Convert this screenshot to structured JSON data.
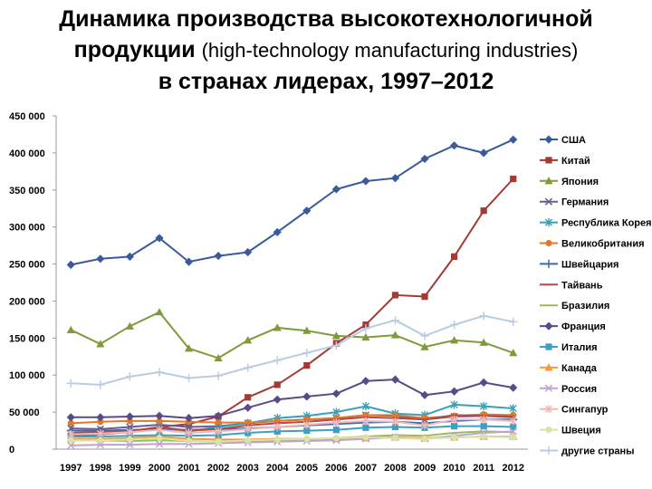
{
  "title": {
    "line1": "Динамика производства высокотехнологичной",
    "line2_main": "продукции",
    "line2_paren": "(high-technology manufacturing  industries)",
    "line3": "в странах лидерах, 1997–2012"
  },
  "chart_data": {
    "type": "line",
    "title": "Динамика производства высокотехнологичной продукции (high-technology manufacturing industries) в странах лидерах, 1997–2012",
    "xlabel": "",
    "ylabel": "",
    "categories": [
      "1997",
      "1998",
      "1999",
      "2000",
      "2001",
      "2002",
      "2003",
      "2004",
      "2005",
      "2006",
      "2007",
      "2008",
      "2009",
      "2010",
      "2011",
      "2012"
    ],
    "ylim": [
      0,
      450000
    ],
    "y_ticks": [
      0,
      50000,
      100000,
      150000,
      200000,
      250000,
      300000,
      350000,
      400000,
      450000
    ],
    "y_tick_labels": [
      "0",
      "50 000",
      "100 000",
      "150 000",
      "200 000",
      "250 000",
      "300 000",
      "350 000",
      "400 000",
      "450 000"
    ],
    "grid": false,
    "legend_position": "right",
    "series": [
      {
        "name": "США",
        "color": "#3a5a9a",
        "marker": "diamond",
        "values": [
          249000,
          257000,
          260000,
          285000,
          253000,
          261000,
          266000,
          293000,
          322000,
          351000,
          362000,
          366000,
          392000,
          410000,
          400000,
          418000
        ]
      },
      {
        "name": "Китай",
        "color": "#a33b34",
        "marker": "square",
        "values": [
          18000,
          20000,
          24000,
          30000,
          34000,
          44000,
          70000,
          87000,
          113000,
          143000,
          168000,
          208000,
          206000,
          260000,
          322000,
          365000
        ]
      },
      {
        "name": "Япония",
        "color": "#7f9a3c",
        "marker": "triangle",
        "values": [
          161000,
          142000,
          166000,
          185000,
          136000,
          123000,
          147000,
          164000,
          160000,
          153000,
          151000,
          154000,
          138000,
          147000,
          144000,
          130000
        ]
      },
      {
        "name": "Германия",
        "color": "#6b5a91",
        "marker": "x",
        "values": [
          28000,
          27000,
          30000,
          33000,
          30000,
          31000,
          35000,
          38000,
          40000,
          42000,
          46000,
          45000,
          40000,
          44000,
          45000,
          43000
        ]
      },
      {
        "name": "Республика Корея",
        "color": "#3aa0b8",
        "marker": "star",
        "values": [
          20000,
          20000,
          23000,
          30000,
          24000,
          30000,
          35000,
          42000,
          45000,
          50000,
          58000,
          48000,
          46000,
          60000,
          58000,
          55000
        ]
      },
      {
        "name": "Великобритания",
        "color": "#e07a2a",
        "marker": "circle",
        "values": [
          35000,
          37000,
          38000,
          38000,
          37000,
          36000,
          36000,
          38000,
          40000,
          42000,
          46000,
          46000,
          42000,
          45000,
          47000,
          46000
        ]
      },
      {
        "name": "Швейцария",
        "color": "#3b6bb0",
        "marker": "plus",
        "values": [
          25000,
          25000,
          26000,
          27000,
          26000,
          27000,
          28000,
          30000,
          32000,
          34000,
          36000,
          37000,
          35000,
          38000,
          40000,
          40000
        ]
      },
      {
        "name": "Тайвань",
        "color": "#b34a44",
        "marker": "none",
        "values": [
          22000,
          23000,
          24000,
          30000,
          25000,
          27000,
          32000,
          35000,
          37000,
          40000,
          43000,
          42000,
          40000,
          46000,
          45000,
          44000
        ]
      },
      {
        "name": "Бразилия",
        "color": "#9bbb59",
        "marker": "none",
        "values": [
          12000,
          12000,
          11000,
          12000,
          11000,
          10000,
          11000,
          12000,
          13000,
          15000,
          17000,
          19000,
          18000,
          22000,
          24000,
          23000
        ]
      },
      {
        "name": "Франция",
        "color": "#5b4a8a",
        "marker": "diamond",
        "values": [
          43000,
          43000,
          44000,
          45000,
          42000,
          45000,
          56000,
          67000,
          71000,
          75000,
          92000,
          94000,
          73000,
          78000,
          90000,
          83000
        ]
      },
      {
        "name": "Италия",
        "color": "#3ba0c4",
        "marker": "square",
        "values": [
          17000,
          17000,
          18000,
          19000,
          18000,
          19000,
          22000,
          24000,
          25000,
          26000,
          29000,
          30000,
          29000,
          31000,
          31000,
          30000
        ]
      },
      {
        "name": "Канада",
        "color": "#f29b3b",
        "marker": "triangle",
        "values": [
          14000,
          14000,
          15000,
          17000,
          14000,
          13000,
          13000,
          14000,
          14000,
          14000,
          15000,
          16000,
          15000,
          16000,
          17000,
          17000
        ]
      },
      {
        "name": "Россия",
        "color": "#c0a3cf",
        "marker": "x",
        "values": [
          5000,
          6000,
          6000,
          7000,
          7000,
          8000,
          9000,
          10000,
          11000,
          12000,
          14000,
          16000,
          14000,
          18000,
          22000,
          24000
        ]
      },
      {
        "name": "Сингапур",
        "color": "#f2b8b8",
        "marker": "star",
        "values": [
          20000,
          21000,
          23000,
          26000,
          22000,
          24000,
          27000,
          30000,
          33000,
          36000,
          38000,
          37000,
          32000,
          40000,
          40000,
          38000
        ]
      },
      {
        "name": "Швеция",
        "color": "#d9e3a6",
        "marker": "circle",
        "values": [
          12000,
          12000,
          13000,
          15000,
          11000,
          10000,
          12000,
          13000,
          14000,
          15000,
          16000,
          15000,
          14000,
          16000,
          17000,
          16000
        ]
      },
      {
        "name": "другие страны",
        "color": "#b8cce4",
        "marker": "plus",
        "values": [
          89000,
          87000,
          98000,
          104000,
          96000,
          99000,
          110000,
          120000,
          130000,
          140000,
          163000,
          174000,
          153000,
          168000,
          180000,
          172000
        ]
      }
    ]
  }
}
